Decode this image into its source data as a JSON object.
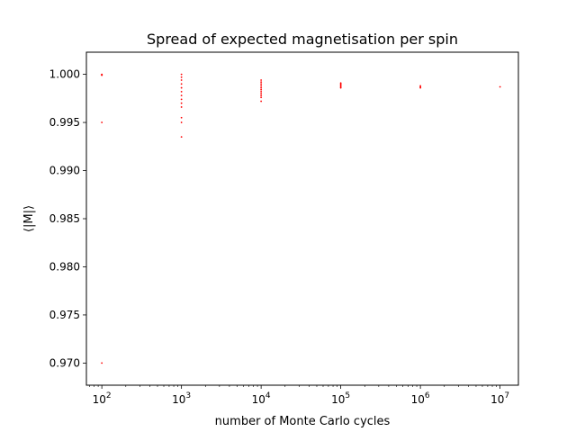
{
  "chart_data": {
    "type": "scatter",
    "title": "Spread of expected magnetisation per spin",
    "xlabel": "number of Monte Carlo cycles",
    "ylabel": "⟨|M|⟩",
    "xscale": "log",
    "xlim": [
      64,
      17000000
    ],
    "ylim": [
      0.9677,
      1.0023
    ],
    "x_ticks": [
      {
        "value": 100,
        "base": "10",
        "exp": "2"
      },
      {
        "value": 1000,
        "base": "10",
        "exp": "3"
      },
      {
        "value": 10000,
        "base": "10",
        "exp": "4"
      },
      {
        "value": 100000,
        "base": "10",
        "exp": "5"
      },
      {
        "value": 1000000,
        "base": "10",
        "exp": "6"
      },
      {
        "value": 10000000,
        "base": "10",
        "exp": "7"
      }
    ],
    "y_ticks": [
      "0.970",
      "0.975",
      "0.980",
      "0.985",
      "0.990",
      "0.995",
      "1.000"
    ],
    "grid": false,
    "marker_color": "#ff0000",
    "series": [
      {
        "points": [
          [
            100,
            1.0
          ],
          [
            100,
            0.99995
          ],
          [
            100,
            0.9999
          ],
          [
            100,
            0.995
          ],
          [
            100,
            0.97
          ],
          [
            1000,
            1.0
          ],
          [
            1000,
            0.9997
          ],
          [
            1000,
            0.9994
          ],
          [
            1000,
            0.999
          ],
          [
            1000,
            0.9986
          ],
          [
            1000,
            0.9982
          ],
          [
            1000,
            0.9978
          ],
          [
            1000,
            0.9974
          ],
          [
            1000,
            0.997
          ],
          [
            1000,
            0.9966
          ],
          [
            1000,
            0.9955
          ],
          [
            1000,
            0.995
          ],
          [
            1000,
            0.9935
          ],
          [
            10000,
            0.9994
          ],
          [
            10000,
            0.9992
          ],
          [
            10000,
            0.999
          ],
          [
            10000,
            0.9988
          ],
          [
            10000,
            0.9986
          ],
          [
            10000,
            0.9984
          ],
          [
            10000,
            0.9982
          ],
          [
            10000,
            0.998
          ],
          [
            10000,
            0.9978
          ],
          [
            10000,
            0.9976
          ],
          [
            10000,
            0.9972
          ],
          [
            100000,
            0.9991
          ],
          [
            100000,
            0.999
          ],
          [
            100000,
            0.9989
          ],
          [
            100000,
            0.9988
          ],
          [
            100000,
            0.9987
          ],
          [
            100000,
            0.9986
          ],
          [
            1000000,
            0.9988
          ],
          [
            1000000,
            0.9987
          ],
          [
            1000000,
            0.9986
          ],
          [
            10000000,
            0.9987
          ]
        ]
      }
    ]
  }
}
